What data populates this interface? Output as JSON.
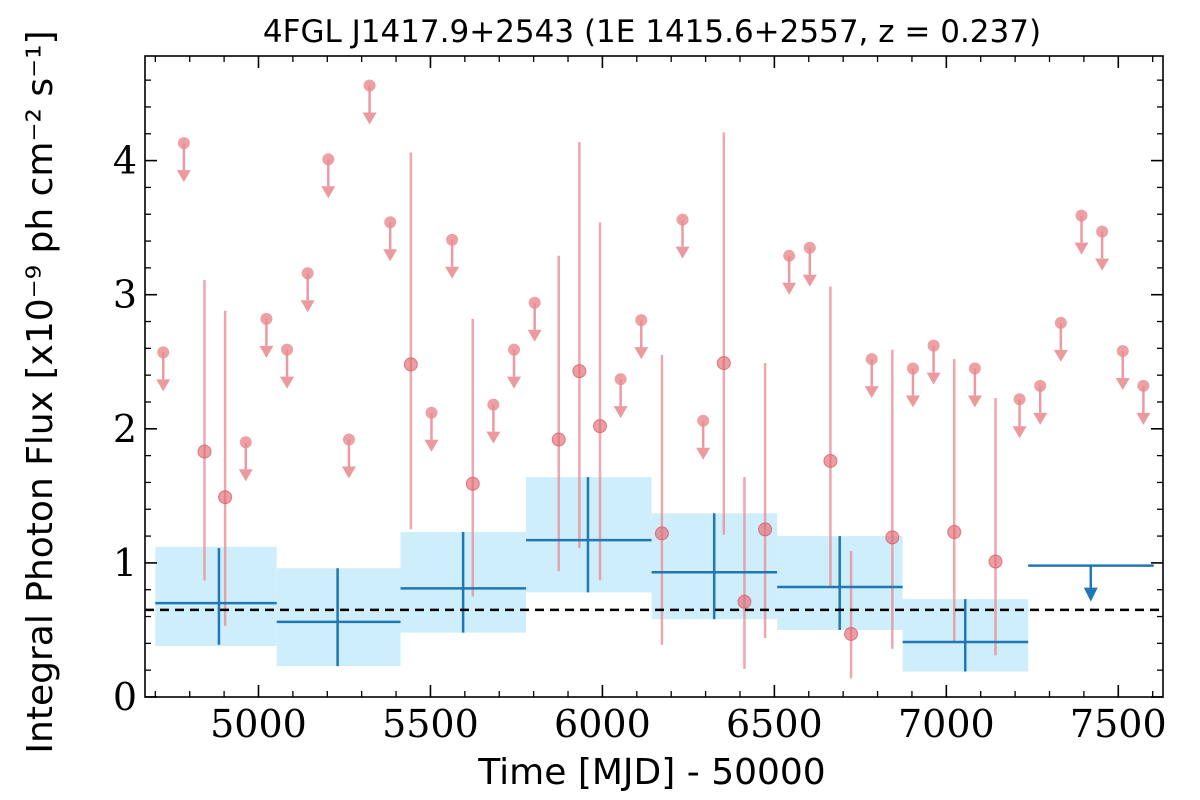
{
  "chart_data": {
    "type": "scatter",
    "title": "4FGL J1417.9+2543 (1E 1415.6+2557, z = 0.237)",
    "xlabel": "Time [MJD] - 50000",
    "ylabel": "Integral Photon Flux [x10⁻⁹ ph cm⁻² s⁻¹]",
    "xlim": [
      4670,
      7630
    ],
    "ylim": [
      0,
      4.78
    ],
    "x_ticks": [
      5000,
      5500,
      6000,
      6500,
      7000,
      7500
    ],
    "y_ticks": [
      0,
      1,
      2,
      3,
      4
    ],
    "x_tick_labels": [
      "5000",
      "5500",
      "6000",
      "6500",
      "7000",
      "7500"
    ],
    "y_tick_labels": [
      "0",
      "1",
      "2",
      "3",
      "4"
    ],
    "reference_level": 0.65,
    "colors": {
      "fine_points": "#e88a8f",
      "coarse_bins": "#1f77b4",
      "coarse_band": "#cfeefb",
      "reference_line": "#000000"
    },
    "series": [
      {
        "kind": "detections_with_errors",
        "points": [
          {
            "x": 4843,
            "y": 1.83,
            "lo": 0.87,
            "hi": 3.11
          },
          {
            "x": 4903,
            "y": 1.49,
            "lo": 0.53,
            "hi": 2.88
          },
          {
            "x": 5443,
            "y": 2.48,
            "lo": 1.25,
            "hi": 4.06
          },
          {
            "x": 5623,
            "y": 1.59,
            "lo": 0.75,
            "hi": 2.82
          },
          {
            "x": 5873,
            "y": 1.92,
            "lo": 0.94,
            "hi": 3.29
          },
          {
            "x": 5933,
            "y": 2.43,
            "lo": 1.11,
            "hi": 4.14
          },
          {
            "x": 5993,
            "y": 2.02,
            "lo": 0.87,
            "hi": 3.54
          },
          {
            "x": 6173,
            "y": 1.22,
            "lo": 0.39,
            "hi": 2.55
          },
          {
            "x": 6353,
            "y": 2.49,
            "lo": 1.21,
            "hi": 4.21
          },
          {
            "x": 6413,
            "y": 0.71,
            "lo": 0.21,
            "hi": 1.64
          },
          {
            "x": 6473,
            "y": 1.25,
            "lo": 0.44,
            "hi": 2.49
          },
          {
            "x": 6663,
            "y": 1.76,
            "lo": 0.83,
            "hi": 3.06
          },
          {
            "x": 6723,
            "y": 0.47,
            "lo": 0.14,
            "hi": 1.09
          },
          {
            "x": 6843,
            "y": 1.19,
            "lo": 0.36,
            "hi": 2.59
          },
          {
            "x": 7023,
            "y": 1.23,
            "lo": 0.41,
            "hi": 2.52
          },
          {
            "x": 7143,
            "y": 1.01,
            "lo": 0.31,
            "hi": 2.23
          }
        ]
      },
      {
        "kind": "upper_limits",
        "points": [
          {
            "x": 4723,
            "y": 2.57
          },
          {
            "x": 4783,
            "y": 4.13
          },
          {
            "x": 4963,
            "y": 1.9
          },
          {
            "x": 5023,
            "y": 2.82
          },
          {
            "x": 5083,
            "y": 2.59
          },
          {
            "x": 5143,
            "y": 3.16
          },
          {
            "x": 5203,
            "y": 4.01
          },
          {
            "x": 5263,
            "y": 1.92
          },
          {
            "x": 5323,
            "y": 4.56
          },
          {
            "x": 5383,
            "y": 3.54
          },
          {
            "x": 5503,
            "y": 2.12
          },
          {
            "x": 5563,
            "y": 3.41
          },
          {
            "x": 5683,
            "y": 2.18
          },
          {
            "x": 5743,
            "y": 2.59
          },
          {
            "x": 5803,
            "y": 2.94
          },
          {
            "x": 6053,
            "y": 2.37
          },
          {
            "x": 6113,
            "y": 2.81
          },
          {
            "x": 6233,
            "y": 3.56
          },
          {
            "x": 6293,
            "y": 2.06
          },
          {
            "x": 6543,
            "y": 3.29
          },
          {
            "x": 6603,
            "y": 3.35
          },
          {
            "x": 6783,
            "y": 2.52
          },
          {
            "x": 6903,
            "y": 2.45
          },
          {
            "x": 6963,
            "y": 2.62
          },
          {
            "x": 7083,
            "y": 2.45
          },
          {
            "x": 7213,
            "y": 2.22
          },
          {
            "x": 7273,
            "y": 2.32
          },
          {
            "x": 7333,
            "y": 2.79
          },
          {
            "x": 7393,
            "y": 3.59
          },
          {
            "x": 7453,
            "y": 3.47
          },
          {
            "x": 7513,
            "y": 2.58
          },
          {
            "x": 7573,
            "y": 2.32
          }
        ]
      },
      {
        "kind": "coarse_bins",
        "bins": [
          {
            "x0": 4700,
            "x1": 5053,
            "xc": 4885,
            "y": 0.7,
            "band_lo": 0.38,
            "band_hi": 1.12,
            "err_lo": 0.39,
            "err_hi": 1.11
          },
          {
            "x0": 5053,
            "x1": 5413,
            "xc": 5230,
            "y": 0.56,
            "band_lo": 0.23,
            "band_hi": 0.96,
            "err_lo": 0.23,
            "err_hi": 0.96
          },
          {
            "x0": 5413,
            "x1": 5778,
            "xc": 5595,
            "y": 0.81,
            "band_lo": 0.48,
            "band_hi": 1.23,
            "err_lo": 0.48,
            "err_hi": 1.23
          },
          {
            "x0": 5778,
            "x1": 6143,
            "xc": 5958,
            "y": 1.17,
            "band_lo": 0.78,
            "band_hi": 1.64,
            "err_lo": 0.78,
            "err_hi": 1.64
          },
          {
            "x0": 6143,
            "x1": 6508,
            "xc": 6325,
            "y": 0.93,
            "band_lo": 0.58,
            "band_hi": 1.37,
            "err_lo": 0.58,
            "err_hi": 1.37
          },
          {
            "x0": 6508,
            "x1": 6873,
            "xc": 6690,
            "y": 0.82,
            "band_lo": 0.5,
            "band_hi": 1.2,
            "err_lo": 0.5,
            "err_hi": 1.2
          },
          {
            "x0": 6873,
            "x1": 7238,
            "xc": 7055,
            "y": 0.41,
            "band_lo": 0.19,
            "band_hi": 0.73,
            "err_lo": 0.19,
            "err_hi": 0.73
          }
        ]
      },
      {
        "kind": "coarse_upper_limit",
        "x0": 7238,
        "x1": 7603,
        "xc": 7420,
        "y": 0.98
      }
    ]
  }
}
